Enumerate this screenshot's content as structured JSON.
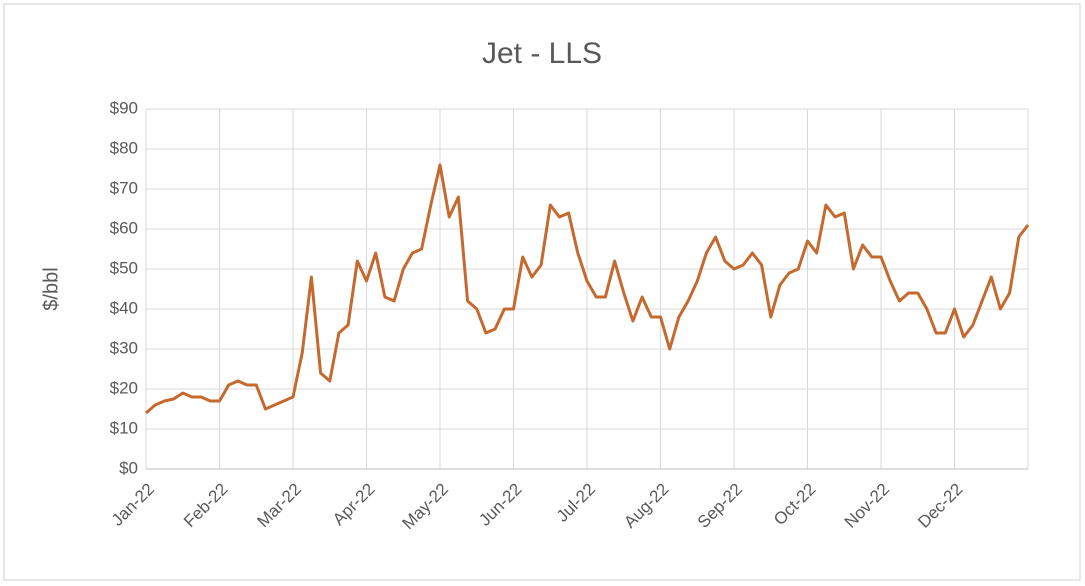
{
  "chart_data": {
    "type": "line",
    "title": "Jet - LLS",
    "y_label": "$/bbl",
    "categories": [
      "Jan-22",
      null,
      null,
      null,
      null,
      null,
      null,
      null,
      "Feb-22",
      null,
      null,
      null,
      null,
      null,
      null,
      null,
      "Mar-22",
      null,
      null,
      null,
      null,
      null,
      null,
      null,
      "Apr-22",
      null,
      null,
      null,
      null,
      null,
      null,
      null,
      "May-22",
      null,
      null,
      null,
      null,
      null,
      null,
      null,
      "Jun-22",
      null,
      null,
      null,
      null,
      null,
      null,
      null,
      "Jul-22",
      null,
      null,
      null,
      null,
      null,
      null,
      null,
      "Aug-22",
      null,
      null,
      null,
      null,
      null,
      null,
      null,
      "Sep-22",
      null,
      null,
      null,
      null,
      null,
      null,
      null,
      "Oct-22",
      null,
      null,
      null,
      null,
      null,
      null,
      null,
      "Nov-22",
      null,
      null,
      null,
      null,
      null,
      null,
      null,
      "Dec-22",
      null,
      null,
      null,
      null,
      null,
      null,
      null,
      null
    ],
    "series": [
      {
        "name": "Jet - LLS",
        "color": "#c5692f",
        "values": [
          14,
          16,
          17,
          17.5,
          19,
          18,
          18,
          17,
          17,
          21,
          22,
          21,
          21,
          15,
          16,
          17,
          18,
          29,
          48,
          24,
          22,
          34,
          36,
          52,
          47,
          54,
          43,
          42,
          50,
          54,
          55,
          66,
          76,
          63,
          68,
          42,
          40,
          34,
          35,
          40,
          40,
          53,
          48,
          51,
          66,
          63,
          64,
          54,
          47,
          43,
          43,
          52,
          44,
          37,
          43,
          38,
          38,
          30,
          38,
          42,
          47,
          54,
          58,
          52,
          50,
          51,
          54,
          51,
          38,
          46,
          49,
          50,
          57,
          54,
          66,
          63,
          64,
          50,
          56,
          53,
          53,
          47,
          42,
          44,
          44,
          40,
          34,
          34,
          40,
          33,
          36,
          42,
          48,
          40,
          44,
          58,
          61
        ]
      }
    ],
    "ylim": [
      0,
      90
    ],
    "yticks": [
      {
        "value": 0,
        "label": "$0"
      },
      {
        "value": 10,
        "label": "$10"
      },
      {
        "value": 20,
        "label": "$20"
      },
      {
        "value": 30,
        "label": "$30"
      },
      {
        "value": 40,
        "label": "$40"
      },
      {
        "value": 50,
        "label": "$50"
      },
      {
        "value": 60,
        "label": "$60"
      },
      {
        "value": 70,
        "label": "$70"
      },
      {
        "value": 80,
        "label": "$80"
      },
      {
        "value": 90,
        "label": "$90"
      }
    ],
    "grid": true
  }
}
